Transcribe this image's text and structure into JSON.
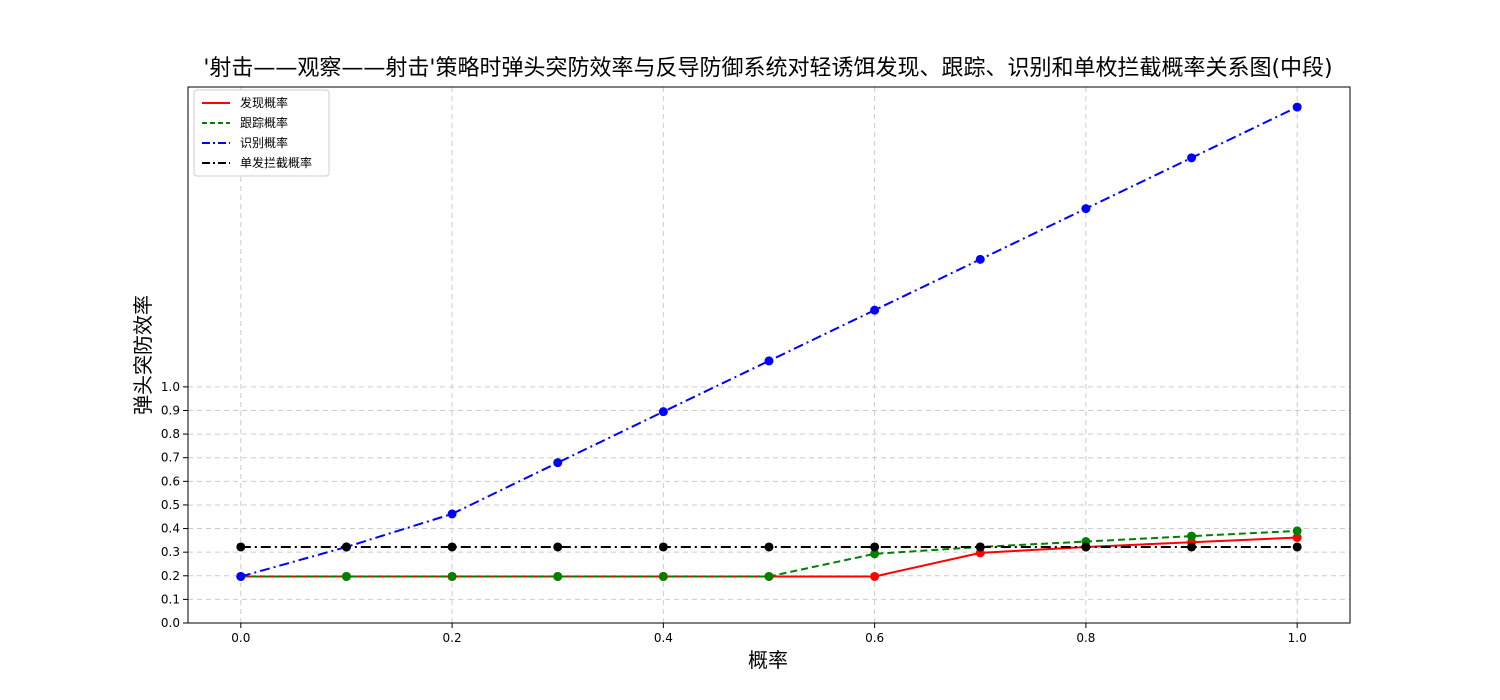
{
  "chart_data": {
    "type": "line",
    "title": "'射击——观察——射击'策略时弹头突防效率与反导防御系统对轻诱饵发现、跟踪、识别和单枚拦截概率关系图(中段)",
    "xlabel": "概率",
    "ylabel": "弹头突防效率",
    "x": [
      0.0,
      0.1,
      0.2,
      0.3,
      0.4,
      0.5,
      0.6,
      0.7,
      0.8,
      0.9,
      1.0
    ],
    "xlim": [
      -0.05,
      1.05
    ],
    "ylim": [
      0.0,
      2.27
    ],
    "xticks": [
      "0.0",
      "0.2",
      "0.4",
      "0.6",
      "0.8",
      "1.0"
    ],
    "xtick_values": [
      0.0,
      0.2,
      0.4,
      0.6,
      0.8,
      1.0
    ],
    "yticks": [
      "0.0",
      "0.1",
      "0.2",
      "0.3",
      "0.4",
      "0.5",
      "0.6",
      "0.7",
      "0.8",
      "0.9",
      "1.0"
    ],
    "ytick_values": [
      0.0,
      0.1,
      0.2,
      0.3,
      0.4,
      0.5,
      0.6,
      0.7,
      0.8,
      0.9,
      1.0
    ],
    "grid": true,
    "legend_position": "top-left",
    "series": [
      {
        "name": "发现概率",
        "color": "#ff0000",
        "linestyle": "solid",
        "values": [
          0.197,
          0.197,
          0.197,
          0.197,
          0.197,
          0.197,
          0.197,
          0.297,
          0.322,
          0.342,
          0.362
        ]
      },
      {
        "name": "跟踪概率",
        "color": "#008000",
        "linestyle": "dashed",
        "values": [
          0.197,
          0.197,
          0.197,
          0.197,
          0.197,
          0.197,
          0.293,
          0.322,
          0.345,
          0.368,
          0.39
        ]
      },
      {
        "name": "识别概率",
        "color": "#0000ff",
        "linestyle": "dashdot",
        "values": [
          0.197,
          0.322,
          0.462,
          0.679,
          0.895,
          1.11,
          1.325,
          1.54,
          1.755,
          1.97,
          2.185
        ]
      },
      {
        "name": "单发拦截概率",
        "color": "#000000",
        "linestyle": "dashdot",
        "values": [
          0.322,
          0.322,
          0.322,
          0.322,
          0.322,
          0.322,
          0.322,
          0.322,
          0.322,
          0.322,
          0.322
        ]
      }
    ]
  }
}
